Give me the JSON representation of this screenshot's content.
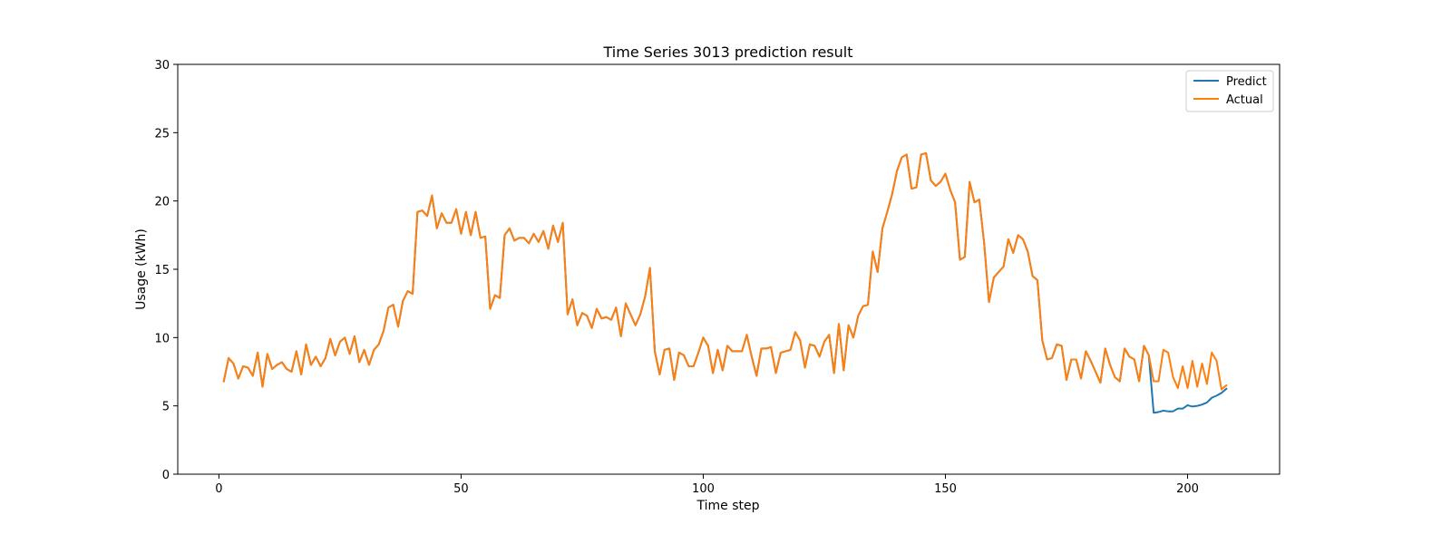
{
  "chart_data": {
    "type": "line",
    "title": "Time Series 3013 prediction result",
    "xlabel": "Time step",
    "ylabel": "Usage (kWh)",
    "xlim": [
      -8.5,
      219
    ],
    "ylim": [
      0,
      30
    ],
    "xticks": [
      0,
      50,
      100,
      150,
      200
    ],
    "yticks": [
      0,
      5,
      10,
      15,
      20,
      25,
      30
    ],
    "grid": false,
    "legend_position": "top-right",
    "x_start": 1,
    "series": [
      {
        "name": "Predict",
        "color": "#1f77b4",
        "values": [
          6.8,
          8.5,
          8.1,
          7.0,
          7.9,
          7.8,
          7.2,
          8.9,
          6.4,
          8.8,
          7.7,
          8.0,
          8.2,
          7.7,
          7.5,
          9.0,
          7.3,
          9.5,
          8.0,
          8.6,
          7.9,
          8.5,
          9.9,
          8.7,
          9.7,
          10.0,
          8.8,
          10.1,
          8.2,
          9.1,
          8.0,
          9.1,
          9.5,
          10.5,
          12.2,
          12.4,
          10.8,
          12.7,
          13.4,
          13.2,
          19.2,
          19.3,
          18.9,
          20.4,
          18.0,
          19.1,
          18.4,
          18.4,
          19.4,
          17.6,
          19.2,
          17.5,
          19.2,
          17.3,
          17.4,
          12.1,
          13.1,
          12.9,
          17.5,
          18.0,
          17.1,
          17.3,
          17.3,
          16.9,
          17.6,
          17.0,
          17.8,
          16.5,
          18.2,
          17.0,
          18.4,
          11.7,
          12.8,
          10.9,
          11.8,
          11.6,
          10.7,
          12.1,
          11.4,
          11.5,
          11.3,
          12.2,
          10.1,
          12.5,
          11.7,
          10.9,
          11.7,
          13.0,
          15.1,
          9.0,
          7.3,
          9.1,
          9.2,
          6.9,
          8.9,
          8.7,
          7.9,
          7.9,
          8.9,
          10.0,
          9.4,
          7.4,
          9.1,
          7.6,
          9.4,
          9.0,
          9.0,
          9.0,
          10.2,
          8.6,
          7.2,
          9.2,
          9.2,
          9.3,
          7.4,
          8.9,
          9.0,
          9.1,
          10.4,
          9.8,
          7.8,
          9.5,
          9.4,
          8.6,
          9.7,
          10.2,
          7.4,
          11.0,
          7.6,
          10.9,
          10.0,
          11.6,
          12.3,
          12.4,
          16.3,
          14.8,
          18.0,
          19.2,
          20.5,
          22.2,
          23.2,
          23.4,
          20.9,
          21.0,
          23.4,
          23.5,
          21.5,
          21.1,
          21.4,
          22.0,
          20.8,
          19.9,
          15.7,
          15.9,
          21.4,
          19.9,
          20.1,
          16.9,
          12.6,
          14.4,
          14.8,
          15.2,
          17.2,
          16.2,
          17.5,
          17.2,
          16.3,
          14.5,
          14.2,
          9.8,
          8.4,
          8.5,
          9.5,
          9.4,
          6.9,
          8.4,
          8.4,
          7.0,
          9.0,
          8.3,
          7.5,
          6.7,
          9.2,
          8.0,
          7.1,
          6.8,
          9.2,
          8.6,
          8.4,
          6.8,
          9.4,
          8.7,
          4.5,
          4.55,
          4.65,
          4.6,
          4.6,
          4.8,
          4.8,
          5.05,
          4.95,
          5.0,
          5.1,
          5.25,
          5.6,
          5.75,
          5.95,
          6.25
        ]
      },
      {
        "name": "Actual",
        "color": "#ff7f0e",
        "values": [
          6.8,
          8.5,
          8.1,
          7.0,
          7.9,
          7.8,
          7.2,
          8.9,
          6.4,
          8.8,
          7.7,
          8.0,
          8.2,
          7.7,
          7.5,
          9.0,
          7.3,
          9.5,
          8.0,
          8.6,
          7.9,
          8.5,
          9.9,
          8.7,
          9.7,
          10.0,
          8.8,
          10.1,
          8.2,
          9.1,
          8.0,
          9.1,
          9.5,
          10.5,
          12.2,
          12.4,
          10.8,
          12.7,
          13.4,
          13.2,
          19.2,
          19.3,
          18.9,
          20.4,
          18.0,
          19.1,
          18.4,
          18.4,
          19.4,
          17.6,
          19.2,
          17.5,
          19.2,
          17.3,
          17.4,
          12.1,
          13.1,
          12.9,
          17.5,
          18.0,
          17.1,
          17.3,
          17.3,
          16.9,
          17.6,
          17.0,
          17.8,
          16.5,
          18.2,
          17.0,
          18.4,
          11.7,
          12.8,
          10.9,
          11.8,
          11.6,
          10.7,
          12.1,
          11.4,
          11.5,
          11.3,
          12.2,
          10.1,
          12.5,
          11.7,
          10.9,
          11.7,
          13.0,
          15.1,
          9.0,
          7.3,
          9.1,
          9.2,
          6.9,
          8.9,
          8.7,
          7.9,
          7.9,
          8.9,
          10.0,
          9.4,
          7.4,
          9.1,
          7.6,
          9.4,
          9.0,
          9.0,
          9.0,
          10.2,
          8.6,
          7.2,
          9.2,
          9.2,
          9.3,
          7.4,
          8.9,
          9.0,
          9.1,
          10.4,
          9.8,
          7.8,
          9.5,
          9.4,
          8.6,
          9.7,
          10.2,
          7.4,
          11.0,
          7.6,
          10.9,
          10.0,
          11.6,
          12.3,
          12.4,
          16.3,
          14.8,
          18.0,
          19.2,
          20.5,
          22.2,
          23.2,
          23.4,
          20.9,
          21.0,
          23.4,
          23.5,
          21.5,
          21.1,
          21.4,
          22.0,
          20.8,
          19.9,
          15.7,
          15.9,
          21.4,
          19.9,
          20.1,
          16.9,
          12.6,
          14.4,
          14.8,
          15.2,
          17.2,
          16.2,
          17.5,
          17.2,
          16.3,
          14.5,
          14.2,
          9.8,
          8.4,
          8.5,
          9.5,
          9.4,
          6.9,
          8.4,
          8.4,
          7.0,
          9.0,
          8.3,
          7.5,
          6.7,
          9.2,
          8.0,
          7.1,
          6.8,
          9.2,
          8.6,
          8.4,
          6.8,
          9.4,
          8.7,
          6.8,
          6.8,
          9.1,
          8.9,
          7.1,
          6.3,
          7.9,
          6.3,
          8.3,
          6.4,
          8.1,
          6.6,
          8.9,
          8.3,
          6.2,
          6.5
        ]
      }
    ]
  }
}
